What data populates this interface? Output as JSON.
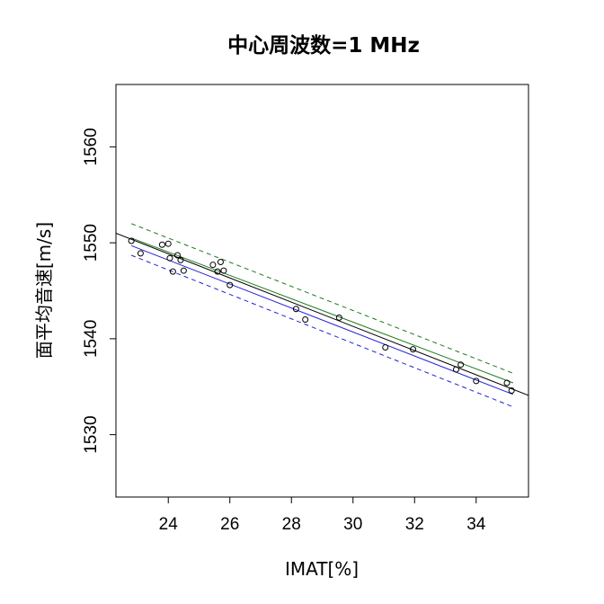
{
  "chart_data": {
    "type": "scatter",
    "title": "中心周波数=1 MHz",
    "xlabel": "IMAT[%]",
    "ylabel": "面平均音速[m/s]",
    "xlim": [
      22.3,
      35.7
    ],
    "ylim": [
      1523.5,
      1566.5
    ],
    "x_ticks": [
      24,
      26,
      28,
      30,
      32,
      34
    ],
    "y_ticks": [
      1530,
      1540,
      1550,
      1560
    ],
    "x_tick_labels": [
      "24",
      "26",
      "28",
      "30",
      "32",
      "34"
    ],
    "y_tick_labels": [
      "1530",
      "1540",
      "1550",
      "1560"
    ],
    "grid": false,
    "points": [
      {
        "x": 22.8,
        "y": 1550.2
      },
      {
        "x": 23.1,
        "y": 1548.9
      },
      {
        "x": 23.8,
        "y": 1549.8
      },
      {
        "x": 24.0,
        "y": 1549.9
      },
      {
        "x": 24.05,
        "y": 1548.4
      },
      {
        "x": 24.15,
        "y": 1547.0
      },
      {
        "x": 24.3,
        "y": 1548.7
      },
      {
        "x": 24.4,
        "y": 1548.2
      },
      {
        "x": 24.5,
        "y": 1547.1
      },
      {
        "x": 25.45,
        "y": 1547.7
      },
      {
        "x": 25.6,
        "y": 1547.0
      },
      {
        "x": 25.7,
        "y": 1548.0
      },
      {
        "x": 25.8,
        "y": 1547.1
      },
      {
        "x": 26.0,
        "y": 1545.6
      },
      {
        "x": 28.15,
        "y": 1543.1
      },
      {
        "x": 28.45,
        "y": 1542.0
      },
      {
        "x": 29.55,
        "y": 1542.2
      },
      {
        "x": 31.05,
        "y": 1539.1
      },
      {
        "x": 31.95,
        "y": 1538.9
      },
      {
        "x": 33.35,
        "y": 1536.8
      },
      {
        "x": 33.5,
        "y": 1537.3
      },
      {
        "x": 34.0,
        "y": 1535.6
      },
      {
        "x": 35.0,
        "y": 1535.4
      },
      {
        "x": 35.15,
        "y": 1534.6
      }
    ],
    "lines": [
      {
        "color": "#000000",
        "dash": "solid",
        "x": [
          22.3,
          35.7
        ],
        "y": [
          1551.0,
          1534.1
        ]
      },
      {
        "color": "#1a7a1a",
        "dash": "solid",
        "x": [
          22.8,
          35.2
        ],
        "y": [
          1550.5,
          1535.4
        ]
      },
      {
        "color": "#1a7a1a",
        "dash": "dashed",
        "x": [
          22.8,
          35.2
        ],
        "y": [
          1552.0,
          1536.4
        ]
      },
      {
        "color": "#2020d8",
        "dash": "solid",
        "x": [
          22.8,
          35.2
        ],
        "y": [
          1549.7,
          1534.2
        ]
      },
      {
        "color": "#2020d8",
        "dash": "dashed",
        "x": [
          22.8,
          35.2
        ],
        "y": [
          1548.7,
          1532.9
        ]
      }
    ]
  }
}
